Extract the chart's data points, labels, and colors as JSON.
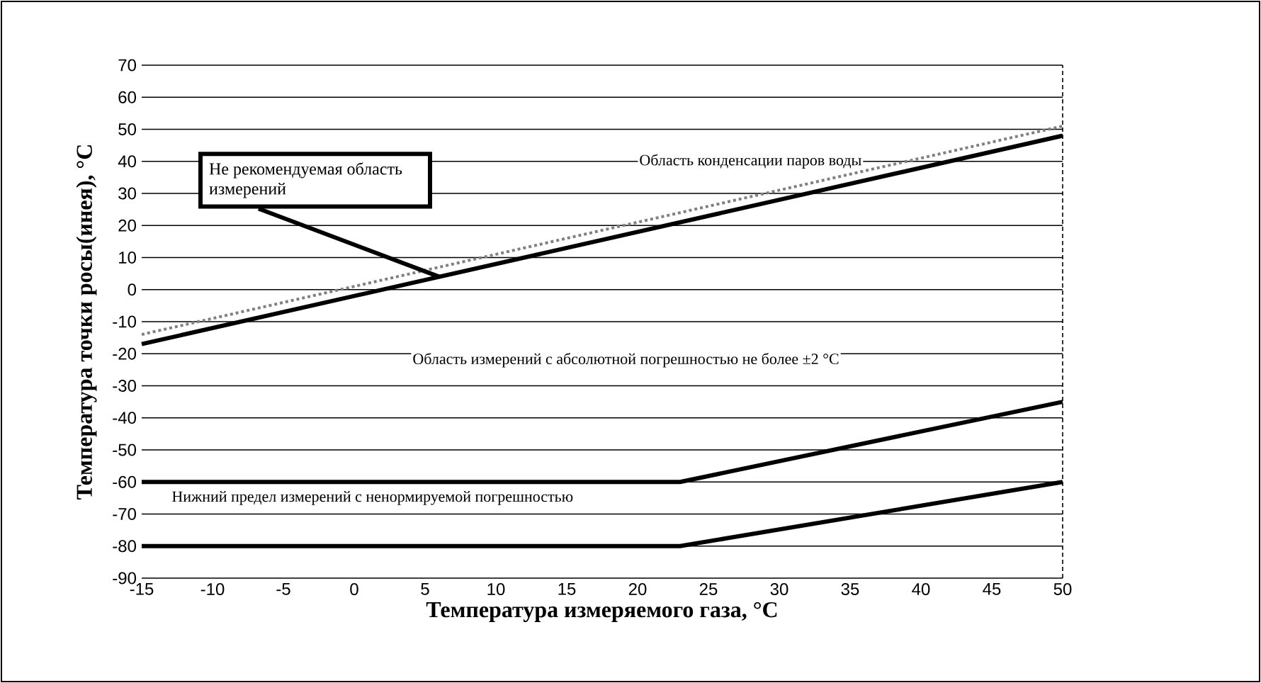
{
  "chart_data": {
    "type": "line",
    "xlabel": "Температура измеряемого газа, °C",
    "ylabel": "Температура точки росы(инея), °C",
    "series": [
      {
        "color": "#000000",
        "line_style": "solid",
        "x": [
          -15,
          50
        ],
        "values": [
          -17,
          48
        ]
      },
      {
        "color": "#808080",
        "line_style": "dotted",
        "x": [
          -15,
          50
        ],
        "values": [
          -14,
          51
        ]
      },
      {
        "color": "#000000",
        "line_style": "solid",
        "x": [
          -15,
          23,
          50
        ],
        "values": [
          -60,
          -60,
          -35
        ]
      },
      {
        "color": "#000000",
        "line_style": "solid",
        "x": [
          -15,
          23,
          50
        ],
        "values": [
          -80,
          -80,
          -60
        ]
      }
    ],
    "xlim": [
      -15,
      50
    ],
    "xticks": [
      -15,
      -10,
      -5,
      0,
      5,
      10,
      15,
      20,
      25,
      30,
      35,
      40,
      45,
      50
    ],
    "ylim": [
      -90,
      70
    ],
    "yticks": [
      -90,
      -80,
      -70,
      -60,
      -50,
      -40,
      -30,
      -20,
      -10,
      0,
      10,
      20,
      30,
      40,
      50,
      60,
      70
    ],
    "grid": "y",
    "marker": "none",
    "annotations": [
      "Область конденсации паров воды",
      {
        "text": "Не рекомендуемая область измерений",
        "x": 6,
        "y": 4
      },
      "Область измерений с абсолютной погрешностью не более ±2 °C",
      "Нижний предел измерений с ненормируемой погрешностью"
    ]
  }
}
